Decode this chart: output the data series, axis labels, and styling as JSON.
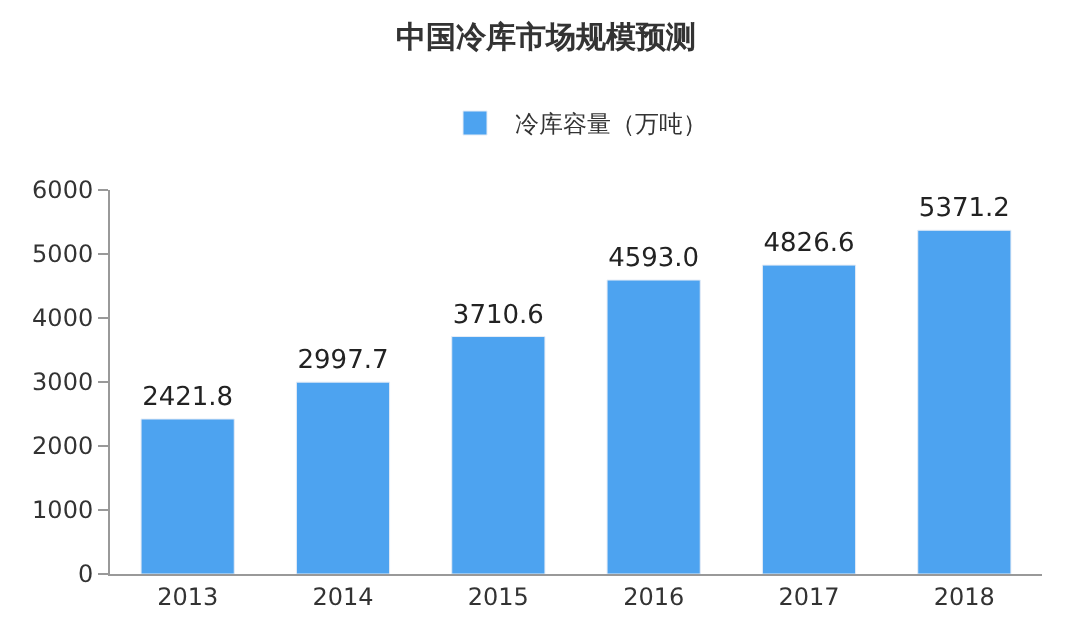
{
  "chart_data": {
    "type": "bar",
    "title": "中国冷库市场规模预测",
    "categories": [
      "2013",
      "2014",
      "2015",
      "2016",
      "2017",
      "2018"
    ],
    "series": [
      {
        "name": "冷库容量（万吨）",
        "color": "#4da3f0",
        "values": [
          2421.8,
          2997.7,
          3710.6,
          4593.0,
          4826.6,
          5371.2
        ]
      }
    ],
    "value_labels": [
      "2421.8",
      "2997.7",
      "3710.6",
      "4593.0",
      "4826.6",
      "5371.2"
    ],
    "ylim": [
      0,
      6000
    ],
    "yticks": [
      0,
      1000,
      2000,
      3000,
      4000,
      5000,
      6000
    ],
    "legend": "top"
  }
}
